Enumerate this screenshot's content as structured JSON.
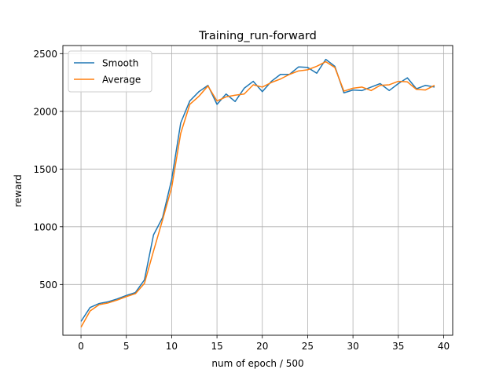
{
  "chart_data": {
    "type": "line",
    "title": "Training_run-forward",
    "xlabel": "num of epoch / 500",
    "ylabel": "reward",
    "xlim": [
      -2,
      41
    ],
    "ylim": [
      60,
      2570
    ],
    "xticks": [
      0,
      5,
      10,
      15,
      20,
      25,
      30,
      35,
      40
    ],
    "yticks": [
      500,
      1000,
      1500,
      2000,
      2500
    ],
    "grid": true,
    "legend_position": "top-left",
    "x": [
      0,
      1,
      2,
      3,
      4,
      5,
      6,
      7,
      8,
      9,
      10,
      11,
      12,
      13,
      14,
      15,
      16,
      17,
      18,
      19,
      20,
      21,
      22,
      23,
      24,
      25,
      26,
      27,
      28,
      29,
      30,
      31,
      32,
      33,
      34,
      35,
      36,
      37,
      38,
      39
    ],
    "series": [
      {
        "name": "Smooth",
        "color": "#1f77b4",
        "values": [
          180,
          300,
          335,
          350,
          375,
          405,
          430,
          540,
          930,
          1080,
          1410,
          1900,
          2090,
          2170,
          2225,
          2060,
          2150,
          2085,
          2200,
          2260,
          2170,
          2260,
          2320,
          2320,
          2385,
          2380,
          2330,
          2450,
          2390,
          2160,
          2185,
          2180,
          2210,
          2240,
          2180,
          2240,
          2290,
          2195,
          2225,
          2210
        ]
      },
      {
        "name": "Average",
        "color": "#ff7f0e",
        "values": [
          130,
          270,
          325,
          340,
          365,
          395,
          420,
          510,
          790,
          1060,
          1340,
          1810,
          2060,
          2130,
          2220,
          2090,
          2125,
          2140,
          2150,
          2230,
          2210,
          2250,
          2280,
          2320,
          2350,
          2360,
          2390,
          2430,
          2380,
          2175,
          2200,
          2210,
          2180,
          2225,
          2230,
          2260,
          2255,
          2190,
          2185,
          2225
        ]
      }
    ]
  }
}
